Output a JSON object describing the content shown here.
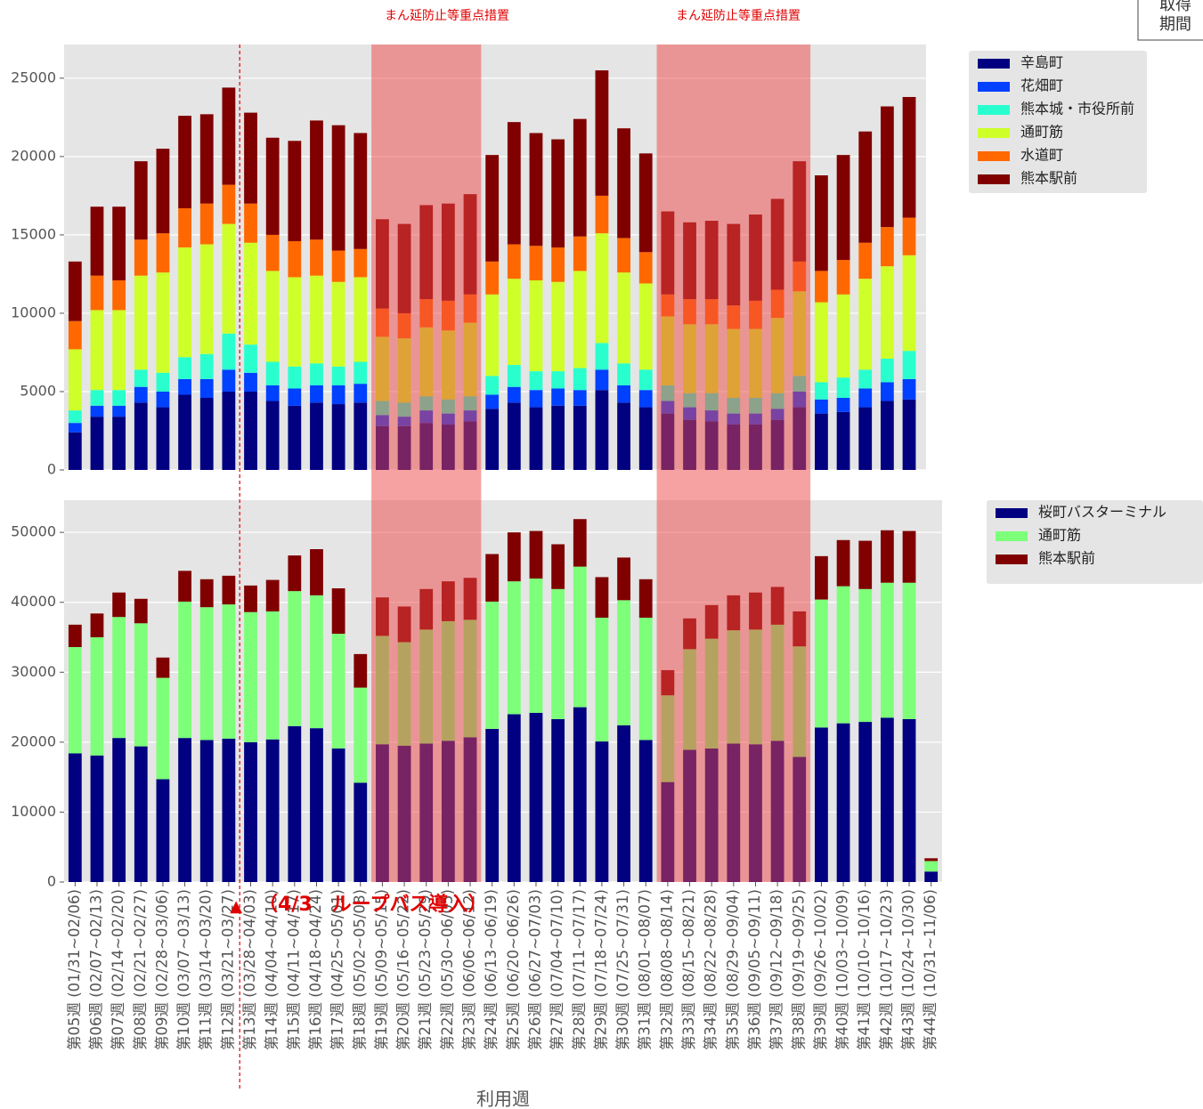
{
  "chart_data": [
    {
      "type": "bar",
      "stacked": true,
      "ylim": [
        0,
        27150
      ],
      "yticks": [
        0,
        5000,
        10000,
        15000,
        20000,
        25000
      ],
      "grid": true,
      "series": [
        {
          "name": "辛島町",
          "color": "#000080",
          "values": [
            2400,
            3400,
            3400,
            4300,
            4000,
            4800,
            4600,
            5000,
            5000,
            4400,
            4100,
            4300,
            4200,
            4300,
            2800,
            2800,
            3000,
            2900,
            3100,
            3900,
            4300,
            4000,
            4100,
            4100,
            5100,
            4300,
            4000,
            3600,
            3200,
            3100,
            2900,
            2900,
            3200,
            4000,
            3600,
            3700,
            4000,
            4400,
            4500,
            null
          ]
        },
        {
          "name": "花畑町",
          "color": "#0040ff",
          "values": [
            600,
            700,
            700,
            1000,
            1000,
            1000,
            1200,
            1400,
            1200,
            1000,
            1100,
            1100,
            1200,
            1200,
            700,
            600,
            800,
            700,
            700,
            900,
            1000,
            1100,
            1100,
            1000,
            1300,
            1100,
            1100,
            800,
            800,
            700,
            700,
            700,
            700,
            1000,
            900,
            900,
            1200,
            1200,
            1300,
            null
          ]
        },
        {
          "name": "熊本城・市役所前",
          "color": "#29ffce",
          "values": [
            800,
            1000,
            1000,
            1100,
            1200,
            1400,
            1600,
            2300,
            1800,
            1500,
            1400,
            1400,
            1200,
            1400,
            900,
            900,
            900,
            900,
            900,
            1200,
            1400,
            1200,
            1100,
            1400,
            1700,
            1400,
            1300,
            1000,
            900,
            1100,
            1000,
            1000,
            1000,
            1000,
            1100,
            1300,
            1200,
            1500,
            1800,
            null
          ]
        },
        {
          "name": "通町筋",
          "color": "#ceff29",
          "values": [
            3900,
            5100,
            5100,
            6000,
            6400,
            7000,
            7000,
            7000,
            6500,
            5800,
            5700,
            5600,
            5400,
            5400,
            4100,
            4100,
            4400,
            4400,
            4700,
            5200,
            5500,
            5800,
            5700,
            6200,
            7000,
            5800,
            5500,
            4400,
            4400,
            4400,
            4400,
            4400,
            4800,
            5400,
            5100,
            5300,
            5800,
            5900,
            6100,
            null
          ]
        },
        {
          "name": "水道町",
          "color": "#ff6800",
          "values": [
            1800,
            2200,
            1900,
            2300,
            2500,
            2500,
            2600,
            2500,
            2500,
            2300,
            2300,
            2300,
            2000,
            1800,
            1800,
            1600,
            1800,
            1900,
            1800,
            2100,
            2200,
            2200,
            2200,
            2200,
            2400,
            2200,
            2000,
            1400,
            1600,
            1600,
            1500,
            1800,
            1800,
            1900,
            2000,
            2200,
            2300,
            2500,
            2400,
            null
          ]
        },
        {
          "name": "熊本駅前",
          "color": "#800000",
          "values": [
            3800,
            4400,
            4700,
            5000,
            5400,
            5900,
            5700,
            6200,
            5800,
            6200,
            6400,
            7600,
            8000,
            7400,
            5700,
            5700,
            6000,
            6200,
            6400,
            6800,
            7800,
            7200,
            6900,
            7500,
            8000,
            7000,
            6300,
            5300,
            4900,
            5000,
            5200,
            5500,
            5800,
            6400,
            6100,
            6700,
            7100,
            7700,
            7700,
            null
          ]
        }
      ]
    },
    {
      "type": "bar",
      "stacked": true,
      "ylim": [
        0,
        54600
      ],
      "yticks": [
        0,
        10000,
        20000,
        30000,
        40000,
        50000
      ],
      "grid": true,
      "xlabel": "利用週",
      "categories": [
        "第05週 (01/31~02/06)",
        "第06週 (02/07~02/13)",
        "第07週 (02/14~02/20)",
        "第08週 (02/21~02/27)",
        "第09週 (02/28~03/06)",
        "第10週 (03/07~03/13)",
        "第11週 (03/14~03/20)",
        "第12週 (03/21~03/27)",
        "第13週 (03/28~04/03)",
        "第14週 (04/04~04/10)",
        "第15週 (04/11~04/17)",
        "第16週 (04/18~04/24)",
        "第17週 (04/25~05/01)",
        "第18週 (05/02~05/08)",
        "第19週 (05/09~05/15)",
        "第20週 (05/16~05/22)",
        "第21週 (05/23~05/29)",
        "第22週 (05/30~06/05)",
        "第23週 (06/06~06/12)",
        "第24週 (06/13~06/19)",
        "第25週 (06/20~06/26)",
        "第26週 (06/27~07/03)",
        "第27週 (07/04~07/10)",
        "第28週 (07/11~07/17)",
        "第29週 (07/18~07/24)",
        "第30週 (07/25~07/31)",
        "第31週 (08/01~08/07)",
        "第32週 (08/08~08/14)",
        "第33週 (08/15~08/21)",
        "第34週 (08/22~08/28)",
        "第35週 (08/29~09/04)",
        "第36週 (09/05~09/11)",
        "第37週 (09/12~09/18)",
        "第38週 (09/19~09/25)",
        "第39週 (09/26~10/02)",
        "第40週 (10/03~10/09)",
        "第41週 (10/10~10/16)",
        "第42週 (10/17~10/23)",
        "第43週 (10/24~10/30)",
        "第44週 (10/31~11/06)"
      ],
      "series": [
        {
          "name": "桜町バスターミナル",
          "color": "#000080",
          "values": [
            18400,
            18100,
            20600,
            19400,
            14700,
            20600,
            20300,
            20500,
            20000,
            20400,
            22300,
            22000,
            19100,
            14200,
            19700,
            19500,
            19800,
            20200,
            20700,
            21900,
            24000,
            24200,
            23300,
            25000,
            20100,
            22400,
            20300,
            14300,
            18900,
            19100,
            19800,
            19700,
            20200,
            17900,
            22100,
            22700,
            22900,
            23500,
            23300,
            1500
          ]
        },
        {
          "name": "通町筋",
          "color": "#7dff7a",
          "values": [
            15200,
            16900,
            17300,
            17600,
            14500,
            19500,
            19000,
            19200,
            18600,
            18300,
            19300,
            19000,
            16400,
            13600,
            15500,
            14800,
            16300,
            17100,
            16800,
            18200,
            19000,
            19200,
            18600,
            20100,
            17700,
            17900,
            17500,
            12400,
            14400,
            15700,
            16200,
            16400,
            16600,
            15800,
            18300,
            19600,
            19000,
            19300,
            19500,
            1500
          ]
        },
        {
          "name": "熊本駅前",
          "color": "#800000",
          "values": [
            3200,
            3400,
            3500,
            3500,
            2900,
            4400,
            4000,
            4100,
            3800,
            4500,
            5100,
            6600,
            6500,
            4800,
            5500,
            5100,
            5800,
            5700,
            6000,
            6800,
            7000,
            6800,
            6400,
            6800,
            5800,
            6100,
            5500,
            3600,
            4400,
            4800,
            5000,
            5300,
            5400,
            5000,
            6200,
            6600,
            6900,
            7500,
            7400,
            400
          ]
        }
      ]
    }
  ],
  "emergency_labels": [
    "まん延防止等重点措置",
    "まん延防止等重点措置"
  ],
  "annotation": {
    "marker": "▲",
    "text": "（4/3　ループバス導入）"
  },
  "note_box": [
    "取得",
    "期間"
  ]
}
